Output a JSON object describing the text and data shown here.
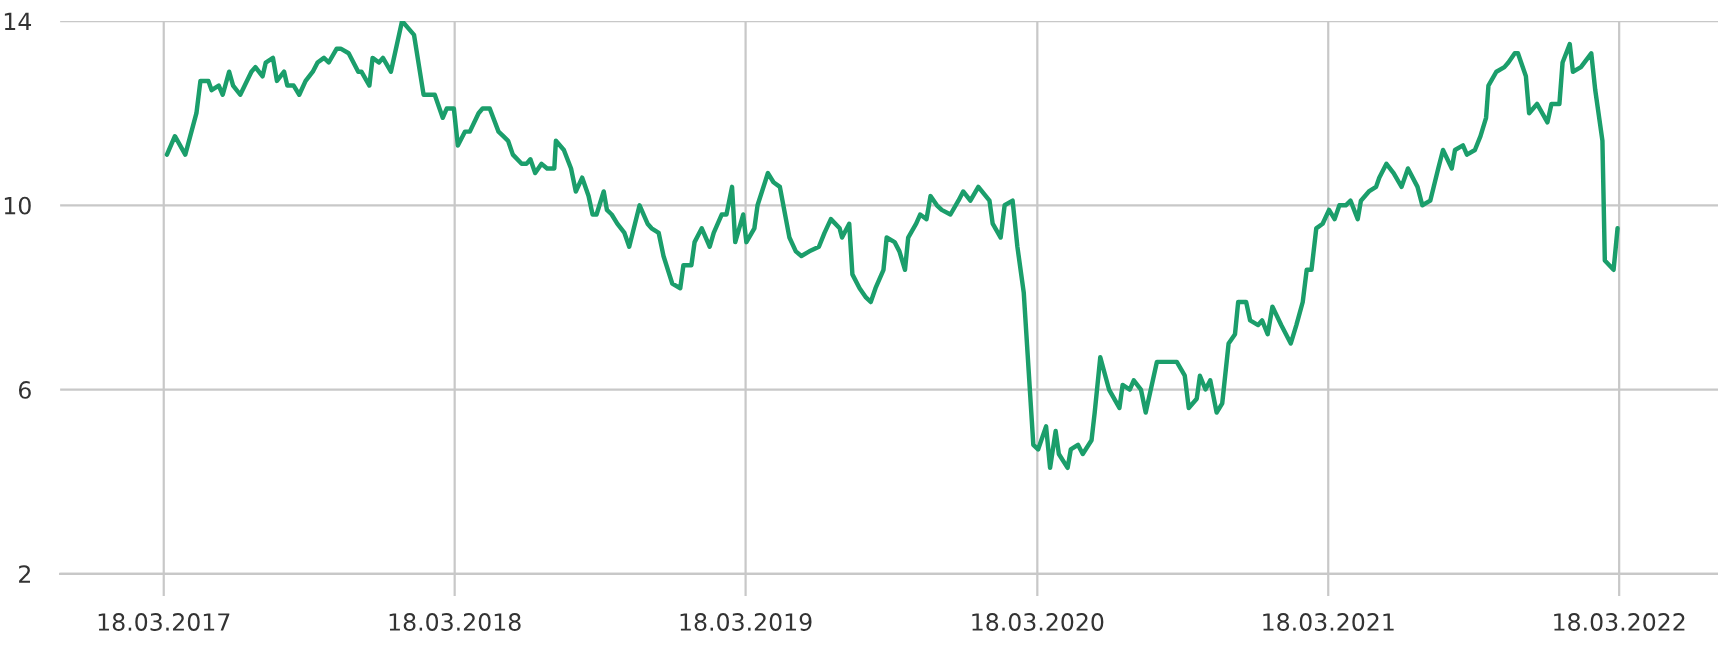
{
  "chart_data": {
    "type": "line",
    "x": [
      "2017-03-22",
      "2017-04-01",
      "2017-04-14",
      "2017-04-28",
      "2017-05-03",
      "2017-05-13",
      "2017-05-17",
      "2017-05-26",
      "2017-05-31",
      "2017-06-08",
      "2017-06-13",
      "2017-06-22",
      "2017-07-06",
      "2017-07-11",
      "2017-07-20",
      "2017-07-24",
      "2017-08-02",
      "2017-08-07",
      "2017-08-16",
      "2017-08-20",
      "2017-08-28",
      "2017-09-04",
      "2017-09-12",
      "2017-09-21",
      "2017-09-27",
      "2017-10-05",
      "2017-10-11",
      "2017-10-21",
      "2017-10-26",
      "2017-11-05",
      "2017-11-11",
      "2017-11-17",
      "2017-11-21",
      "2017-12-01",
      "2017-12-05",
      "2017-12-13",
      "2017-12-18",
      "2017-12-28",
      "2018-01-11",
      "2018-01-26",
      "2018-02-07",
      "2018-02-21",
      "2018-03-03",
      "2018-03-08",
      "2018-03-17",
      "2018-03-22",
      "2018-03-31",
      "2018-04-06",
      "2018-04-17",
      "2018-04-22",
      "2018-05-01",
      "2018-05-12",
      "2018-05-18",
      "2018-05-24",
      "2018-05-30",
      "2018-06-10",
      "2018-06-16",
      "2018-06-21",
      "2018-06-27",
      "2018-07-05",
      "2018-07-12",
      "2018-07-21",
      "2018-07-23",
      "2018-08-02",
      "2018-08-11",
      "2018-08-17",
      "2018-08-25",
      "2018-09-02",
      "2018-09-07",
      "2018-09-12",
      "2018-09-21",
      "2018-09-25",
      "2018-10-01",
      "2018-10-08",
      "2018-10-17",
      "2018-10-23",
      "2018-11-05",
      "2018-11-15",
      "2018-11-20",
      "2018-11-29",
      "2018-12-05",
      "2018-12-16",
      "2018-12-26",
      "2018-12-30",
      "2019-01-09",
      "2019-01-13",
      "2019-01-22",
      "2019-02-01",
      "2019-02-06",
      "2019-02-16",
      "2019-02-22",
      "2019-03-01",
      "2019-03-05",
      "2019-03-15",
      "2019-03-19",
      "2019-03-29",
      "2019-04-02",
      "2019-04-15",
      "2019-04-22",
      "2019-04-30",
      "2019-05-12",
      "2019-05-20",
      "2019-05-27",
      "2019-06-06",
      "2019-06-18",
      "2019-06-25",
      "2019-07-03",
      "2019-07-14",
      "2019-07-17",
      "2019-07-26",
      "2019-07-30",
      "2019-08-08",
      "2019-08-16",
      "2019-08-22",
      "2019-08-28",
      "2019-09-07",
      "2019-09-11",
      "2019-09-21",
      "2019-09-27",
      "2019-10-04",
      "2019-10-08",
      "2019-10-18",
      "2019-10-23",
      "2019-10-31",
      "2019-11-05",
      "2019-11-13",
      "2019-11-19",
      "2019-11-30",
      "2019-12-10",
      "2019-12-16",
      "2019-12-25",
      "2020-01-04",
      "2020-01-18",
      "2020-01-22",
      "2020-02-01",
      "2020-02-06",
      "2020-02-16",
      "2020-02-22",
      "2020-03-01",
      "2020-03-13",
      "2020-03-19",
      "2020-03-29",
      "2020-04-03",
      "2020-04-10",
      "2020-04-14",
      "2020-04-25",
      "2020-04-29",
      "2020-05-08",
      "2020-05-14",
      "2020-05-25",
      "2020-05-29",
      "2020-06-05",
      "2020-06-16",
      "2020-06-29",
      "2020-07-03",
      "2020-07-12",
      "2020-07-17",
      "2020-07-26",
      "2020-08-01",
      "2020-08-15",
      "2020-08-27",
      "2020-09-09",
      "2020-09-19",
      "2020-09-24",
      "2020-10-04",
      "2020-10-08",
      "2020-10-15",
      "2020-10-21",
      "2020-10-29",
      "2020-11-05",
      "2020-11-13",
      "2020-11-21",
      "2020-11-25",
      "2020-12-05",
      "2020-12-10",
      "2020-12-20",
      "2020-12-25",
      "2021-01-01",
      "2021-01-07",
      "2021-01-18",
      "2021-01-30",
      "2021-02-06",
      "2021-02-14",
      "2021-02-19",
      "2021-02-25",
      "2021-03-03",
      "2021-03-11",
      "2021-03-19",
      "2021-03-26",
      "2021-04-01",
      "2021-04-09",
      "2021-04-15",
      "2021-04-24",
      "2021-04-28",
      "2021-05-08",
      "2021-05-17",
      "2021-05-21",
      "2021-05-30",
      "2021-06-08",
      "2021-06-18",
      "2021-06-26",
      "2021-07-08",
      "2021-07-14",
      "2021-07-24",
      "2021-08-03",
      "2021-08-09",
      "2021-08-20",
      "2021-08-24",
      "2021-09-03",
      "2021-09-08",
      "2021-09-18",
      "2021-09-25",
      "2021-10-02",
      "2021-10-05",
      "2021-10-15",
      "2021-10-25",
      "2021-10-30",
      "2021-11-07",
      "2021-11-11",
      "2021-11-21",
      "2021-11-25",
      "2021-12-05",
      "2021-12-18",
      "2021-12-23",
      "2022-01-02",
      "2022-01-06",
      "2022-01-15",
      "2022-01-19",
      "2022-01-29",
      "2022-02-11",
      "2022-02-16",
      "2022-02-25",
      "2022-02-28",
      "2022-03-11",
      "2022-03-16"
    ],
    "series": [
      {
        "color": "#1b9e6b",
        "values": [
          11.1,
          11.5,
          11.1,
          12.0,
          12.7,
          12.7,
          12.5,
          12.6,
          12.4,
          12.9,
          12.6,
          12.4,
          12.9,
          13.0,
          12.8,
          13.1,
          13.2,
          12.7,
          12.9,
          12.6,
          12.6,
          12.4,
          12.7,
          12.9,
          13.1,
          13.2,
          13.1,
          13.4,
          13.4,
          13.3,
          13.1,
          12.9,
          12.9,
          12.6,
          13.2,
          13.1,
          13.2,
          12.9,
          14.0,
          13.7,
          12.4,
          12.4,
          11.9,
          12.1,
          12.1,
          11.3,
          11.6,
          11.6,
          12.0,
          12.1,
          12.1,
          11.6,
          11.5,
          11.4,
          11.1,
          10.9,
          10.9,
          11.0,
          10.7,
          10.9,
          10.8,
          10.8,
          11.4,
          11.2,
          10.8,
          10.3,
          10.6,
          10.2,
          9.8,
          9.8,
          10.3,
          9.9,
          9.8,
          9.6,
          9.4,
          9.1,
          10.0,
          9.6,
          9.5,
          9.4,
          8.9,
          8.3,
          8.2,
          8.7,
          8.7,
          9.2,
          9.5,
          9.1,
          9.4,
          9.8,
          9.8,
          10.4,
          9.2,
          9.8,
          9.2,
          9.5,
          10.0,
          10.7,
          10.5,
          10.4,
          9.3,
          9.0,
          8.9,
          9.0,
          9.1,
          9.4,
          9.7,
          9.5,
          9.3,
          9.6,
          8.5,
          8.2,
          8.0,
          7.9,
          8.2,
          8.6,
          9.3,
          9.2,
          9.0,
          8.6,
          9.3,
          9.6,
          9.8,
          9.7,
          10.2,
          10.0,
          9.9,
          9.8,
          10.1,
          10.3,
          10.1,
          10.4,
          10.1,
          9.6,
          9.3,
          10.0,
          10.1,
          9.1,
          8.1,
          4.8,
          4.7,
          5.2,
          4.3,
          5.1,
          4.6,
          4.3,
          4.7,
          4.8,
          4.6,
          4.9,
          5.5,
          6.7,
          6.0,
          5.6,
          6.1,
          6.0,
          6.2,
          6.0,
          5.5,
          6.6,
          6.6,
          6.6,
          6.3,
          5.6,
          5.8,
          6.3,
          6.0,
          6.2,
          5.5,
          5.7,
          7.0,
          7.2,
          7.9,
          7.9,
          7.5,
          7.4,
          7.5,
          7.2,
          7.8,
          7.4,
          7.0,
          7.4,
          7.9,
          8.6,
          8.6,
          9.5,
          9.6,
          9.9,
          9.7,
          10.0,
          10.0,
          10.1,
          9.7,
          10.1,
          10.3,
          10.4,
          10.6,
          10.9,
          10.7,
          10.4,
          10.8,
          10.4,
          10.0,
          10.1,
          10.8,
          11.2,
          10.8,
          11.2,
          11.3,
          11.1,
          11.2,
          11.5,
          11.9,
          12.6,
          12.9,
          13.0,
          13.1,
          13.3,
          13.3,
          12.8,
          12.0,
          12.2,
          11.8,
          12.2,
          12.2,
          13.1,
          13.5,
          12.9,
          13.0,
          13.3,
          12.5,
          11.4,
          8.8,
          8.6,
          9.5
        ]
      }
    ],
    "xlim": [
      "2016-11-08",
      "2022-07-20"
    ],
    "xticks": [
      {
        "value": "2017-03-18",
        "label": "18.03.2017"
      },
      {
        "value": "2018-03-18",
        "label": "18.03.2018"
      },
      {
        "value": "2019-03-18",
        "label": "18.03.2019"
      },
      {
        "value": "2020-03-18",
        "label": "18.03.2020"
      },
      {
        "value": "2021-03-18",
        "label": "18.03.2021"
      },
      {
        "value": "2022-03-18",
        "label": "18.03.2022"
      }
    ],
    "ylim": [
      2,
      14
    ],
    "yticks": [
      2,
      6,
      10,
      14
    ],
    "grid": true
  }
}
